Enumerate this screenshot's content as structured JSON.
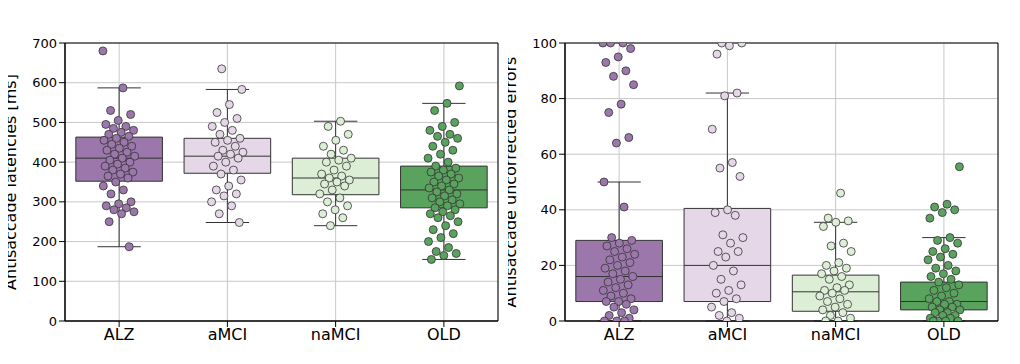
{
  "chart_data": [
    {
      "type": "box",
      "y_label": "Antisaccade latencies [ms]",
      "categories": [
        "ALZ",
        "aMCI",
        "naMCI",
        "OLD"
      ],
      "colors": [
        "#9b77ac",
        "#e5d6e8",
        "#dcefd6",
        "#5aa35e"
      ],
      "ylim": [
        0,
        700
      ],
      "yticks": [
        0,
        100,
        200,
        300,
        400,
        500,
        600,
        700
      ],
      "grid": true,
      "boxes": [
        {
          "q1": 352,
          "median": 410,
          "q3": 463,
          "whisker_low": 187,
          "whisker_high": 587,
          "points": [
            680,
            587,
            530,
            520,
            505,
            495,
            490,
            485,
            480,
            475,
            470,
            465,
            460,
            455,
            450,
            445,
            440,
            435,
            430,
            425,
            420,
            415,
            410,
            405,
            400,
            395,
            390,
            385,
            380,
            375,
            370,
            365,
            360,
            350,
            340,
            330,
            320,
            300,
            295,
            290,
            285,
            280,
            275,
            270,
            250,
            187
          ]
        },
        {
          "q1": 372,
          "median": 415,
          "q3": 460,
          "whisker_low": 248,
          "whisker_high": 583,
          "points": [
            635,
            583,
            545,
            525,
            510,
            500,
            490,
            480,
            470,
            460,
            455,
            450,
            440,
            430,
            425,
            420,
            415,
            410,
            400,
            390,
            380,
            370,
            355,
            340,
            330,
            320,
            315,
            300,
            290,
            270,
            248
          ]
        },
        {
          "q1": 318,
          "median": 360,
          "q3": 410,
          "whisker_low": 240,
          "whisker_high": 503,
          "points": [
            503,
            490,
            470,
            455,
            440,
            430,
            420,
            410,
            405,
            400,
            390,
            380,
            370,
            365,
            360,
            355,
            350,
            345,
            340,
            330,
            320,
            310,
            300,
            290,
            280,
            270,
            260,
            240
          ]
        },
        {
          "q1": 285,
          "median": 330,
          "q3": 390,
          "whisker_low": 155,
          "whisker_high": 548,
          "points": [
            592,
            548,
            530,
            500,
            490,
            480,
            470,
            465,
            460,
            450,
            440,
            430,
            420,
            410,
            400,
            390,
            385,
            380,
            375,
            370,
            365,
            360,
            355,
            350,
            345,
            340,
            335,
            330,
            325,
            320,
            315,
            310,
            305,
            300,
            295,
            290,
            285,
            280,
            275,
            270,
            265,
            260,
            250,
            240,
            230,
            220,
            210,
            200,
            185,
            175,
            170,
            165,
            155
          ]
        }
      ]
    },
    {
      "type": "box",
      "y_label": "Antisaccade uncorrected errors",
      "categories": [
        "ALZ",
        "aMCI",
        "naMCI",
        "OLD"
      ],
      "colors": [
        "#9b77ac",
        "#e5d6e8",
        "#dcefd6",
        "#5aa35e"
      ],
      "ylim": [
        0,
        100
      ],
      "yticks": [
        0,
        20,
        40,
        60,
        80,
        100
      ],
      "grid": true,
      "boxes": [
        {
          "q1": 7,
          "median": 16,
          "q3": 29,
          "whisker_low": 0,
          "whisker_high": 50,
          "points": [
            100,
            100,
            100,
            98,
            95,
            93,
            90,
            88,
            85,
            78,
            75,
            66,
            64,
            50,
            41,
            30,
            29,
            28,
            27,
            26,
            25,
            24,
            23,
            22,
            21,
            20,
            19,
            18,
            17,
            16,
            15,
            14,
            13,
            12,
            11,
            10,
            9,
            8,
            7,
            7,
            6,
            5,
            4,
            3,
            2,
            1,
            0,
            0,
            0
          ]
        },
        {
          "q1": 7,
          "median": 20,
          "q3": 40.5,
          "whisker_low": 0,
          "whisker_high": 82,
          "points": [
            100,
            100,
            99,
            96,
            82,
            81,
            69,
            57,
            55,
            52,
            40,
            39,
            38,
            31,
            30,
            28,
            25,
            25,
            23,
            20,
            18,
            15,
            13,
            11,
            10,
            8,
            7,
            5,
            3,
            2,
            1,
            0
          ]
        },
        {
          "q1": 3.5,
          "median": 10.5,
          "q3": 16.5,
          "whisker_low": 0,
          "whisker_high": 35.5,
          "points": [
            46,
            37,
            36,
            35.5,
            34,
            28,
            27,
            25,
            21,
            20,
            19,
            18,
            17,
            16,
            15,
            13,
            12,
            11,
            11,
            10,
            9,
            8,
            7,
            6,
            5,
            4,
            3,
            2,
            1,
            0,
            0
          ]
        },
        {
          "q1": 4,
          "median": 7,
          "q3": 14,
          "whisker_low": 0,
          "whisker_high": 30,
          "points": [
            55.5,
            42,
            41,
            40,
            39,
            37,
            30,
            29,
            28,
            26,
            25,
            24,
            23,
            22,
            20,
            19,
            18,
            17,
            16,
            15,
            14,
            13,
            12,
            11,
            10,
            9,
            8,
            7,
            7,
            6,
            6,
            5,
            5,
            4,
            4,
            3,
            3,
            2,
            2,
            1,
            1,
            0,
            0,
            0,
            0
          ]
        }
      ]
    }
  ]
}
